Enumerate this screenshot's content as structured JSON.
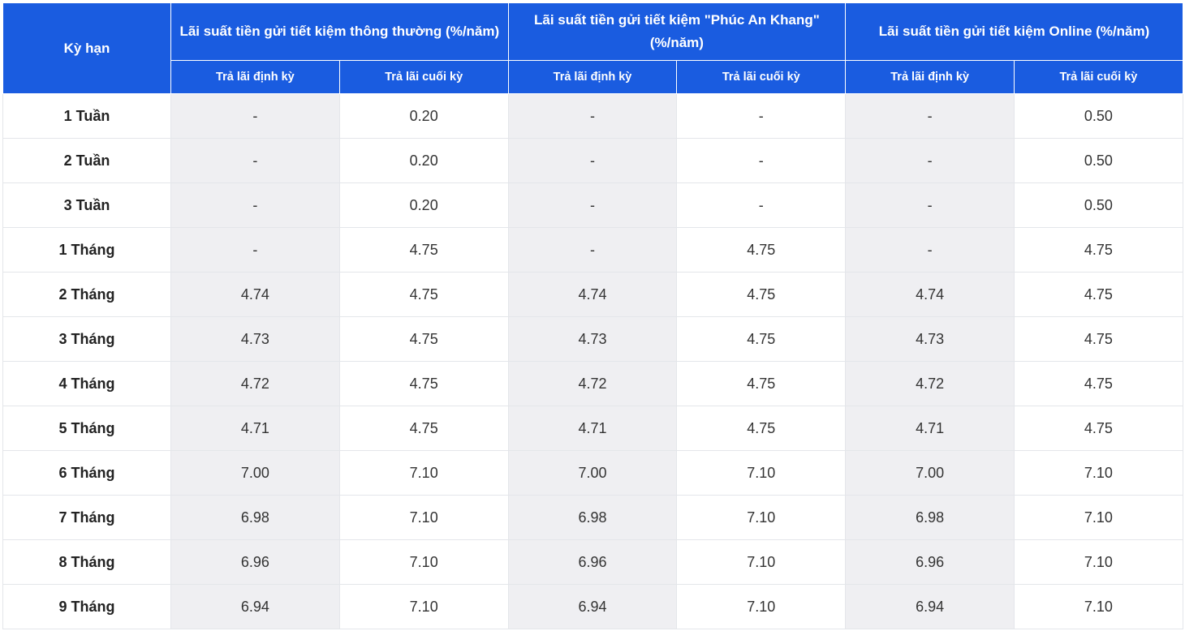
{
  "table": {
    "term_header": "Kỳ hạn",
    "groups": [
      {
        "title": "Lãi suất tiền gửi tiết kiệm thông thường (%/năm)"
      },
      {
        "title": "Lãi suất tiền gửi tiết kiệm \"Phúc An Khang\" (%/năm)"
      },
      {
        "title": "Lãi suất tiền gửi tiết kiệm Online (%/năm)"
      }
    ],
    "subheaders": [
      "Trả lãi định kỳ",
      "Trả lãi cuối kỳ",
      "Trả lãi định kỳ",
      "Trả lãi cuối kỳ",
      "Trả lãi định kỳ",
      "Trả lãi cuối kỳ"
    ],
    "rows": [
      {
        "term": "1 Tuần",
        "values": [
          "-",
          "0.20",
          "-",
          "-",
          "-",
          "0.50"
        ]
      },
      {
        "term": "2 Tuần",
        "values": [
          "-",
          "0.20",
          "-",
          "-",
          "-",
          "0.50"
        ]
      },
      {
        "term": "3 Tuần",
        "values": [
          "-",
          "0.20",
          "-",
          "-",
          "-",
          "0.50"
        ]
      },
      {
        "term": "1 Tháng",
        "values": [
          "-",
          "4.75",
          "-",
          "4.75",
          "-",
          "4.75"
        ]
      },
      {
        "term": "2 Tháng",
        "values": [
          "4.74",
          "4.75",
          "4.74",
          "4.75",
          "4.74",
          "4.75"
        ]
      },
      {
        "term": "3 Tháng",
        "values": [
          "4.73",
          "4.75",
          "4.73",
          "4.75",
          "4.73",
          "4.75"
        ]
      },
      {
        "term": "4 Tháng",
        "values": [
          "4.72",
          "4.75",
          "4.72",
          "4.75",
          "4.72",
          "4.75"
        ]
      },
      {
        "term": "5 Tháng",
        "values": [
          "4.71",
          "4.75",
          "4.71",
          "4.75",
          "4.71",
          "4.75"
        ]
      },
      {
        "term": "6 Tháng",
        "values": [
          "7.00",
          "7.10",
          "7.00",
          "7.10",
          "7.00",
          "7.10"
        ]
      },
      {
        "term": "7 Tháng",
        "values": [
          "6.98",
          "7.10",
          "6.98",
          "7.10",
          "6.98",
          "7.10"
        ]
      },
      {
        "term": "8 Tháng",
        "values": [
          "6.96",
          "7.10",
          "6.96",
          "7.10",
          "6.96",
          "7.10"
        ]
      },
      {
        "term": "9 Tháng",
        "values": [
          "6.94",
          "7.10",
          "6.94",
          "7.10",
          "6.94",
          "7.10"
        ]
      }
    ]
  },
  "colors": {
    "header_bg": "#1a5ce0",
    "header_text": "#ffffff",
    "shaded_cell": "#efeff2",
    "grid_line": "#e4e6ea"
  }
}
